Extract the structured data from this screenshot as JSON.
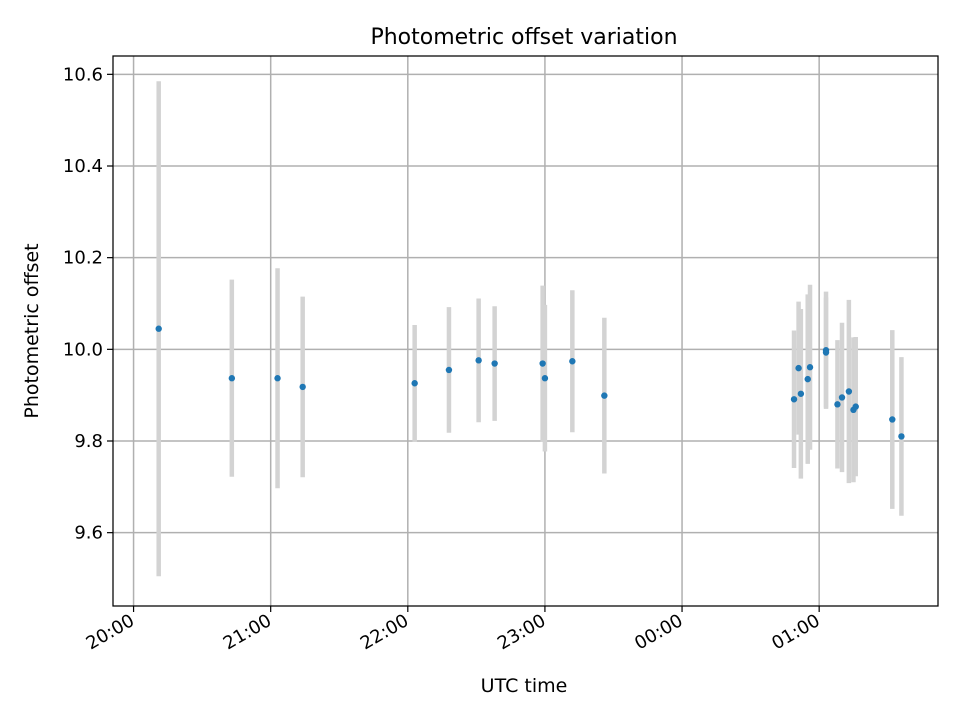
{
  "chart_data": {
    "type": "scatter",
    "title": "Photometric offset variation",
    "xlabel": "UTC time",
    "ylabel": "Photometric offset",
    "x_ticks": [
      "20:00",
      "21:00",
      "22:00",
      "23:00",
      "00:00",
      "01:00"
    ],
    "y_ticks": [
      "9.6",
      "9.8",
      "10.0",
      "10.2",
      "10.4",
      "10.6"
    ],
    "xlim": [
      "20:00",
      "01:52"
    ],
    "ylim": [
      9.44,
      10.64
    ],
    "grid": true,
    "point_color": "#1f77b4",
    "errorbar_color": "#d3d3d3",
    "points": [
      {
        "t": "20:11",
        "y": 10.045,
        "err": 0.54
      },
      {
        "t": "20:43",
        "y": 9.937,
        "err": 0.215
      },
      {
        "t": "21:03",
        "y": 9.937,
        "err": 0.24
      },
      {
        "t": "21:14",
        "y": 9.918,
        "err": 0.197
      },
      {
        "t": "22:03",
        "y": 9.926,
        "err": 0.127
      },
      {
        "t": "22:18",
        "y": 9.955,
        "err": 0.137
      },
      {
        "t": "22:31",
        "y": 9.976,
        "err": 0.135
      },
      {
        "t": "22:38",
        "y": 9.969,
        "err": 0.125
      },
      {
        "t": "22:59",
        "y": 9.969,
        "err": 0.17
      },
      {
        "t": "23:00",
        "y": 9.937,
        "err": 0.16
      },
      {
        "t": "23:12",
        "y": 9.974,
        "err": 0.155
      },
      {
        "t": "23:26",
        "y": 9.899,
        "err": 0.17
      },
      {
        "t": "00:49",
        "y": 9.891,
        "err": 0.15
      },
      {
        "t": "00:51",
        "y": 9.959,
        "err": 0.145
      },
      {
        "t": "00:52",
        "y": 9.903,
        "err": 0.185
      },
      {
        "t": "00:55",
        "y": 9.935,
        "err": 0.185
      },
      {
        "t": "00:56",
        "y": 9.961,
        "err": 0.18
      },
      {
        "t": "01:03",
        "y": 9.998,
        "err": 0.128
      },
      {
        "t": "01:03",
        "y": 9.993,
        "err": 0.12
      },
      {
        "t": "01:08",
        "y": 9.88,
        "err": 0.14
      },
      {
        "t": "01:10",
        "y": 9.895,
        "err": 0.163
      },
      {
        "t": "01:13",
        "y": 9.908,
        "err": 0.2
      },
      {
        "t": "01:15",
        "y": 9.868,
        "err": 0.158
      },
      {
        "t": "01:16",
        "y": 9.875,
        "err": 0.152
      },
      {
        "t": "01:32",
        "y": 9.847,
        "err": 0.195
      },
      {
        "t": "01:36",
        "y": 9.81,
        "err": 0.173
      }
    ]
  }
}
